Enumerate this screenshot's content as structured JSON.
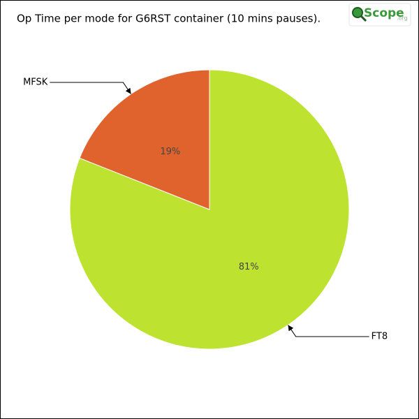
{
  "chart_data": {
    "type": "pie",
    "title": "Op Time per mode for G6RST container (10 mins pauses).",
    "logo": "Scope",
    "logo_suffix": ".org",
    "categories": [
      "FT8",
      "MFSK"
    ],
    "values": [
      81,
      19
    ],
    "value_labels": [
      "81%",
      "19%"
    ],
    "colors": [
      "#bde22f",
      "#e0632e"
    ]
  }
}
